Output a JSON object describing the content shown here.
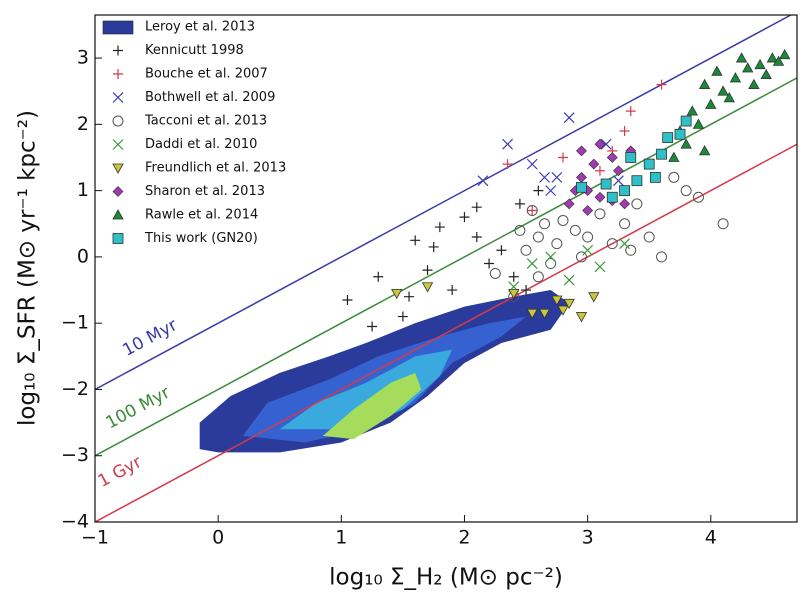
{
  "chart_data": {
    "type": "scatter",
    "xlabel": "log₁₀ Σ_H₂ (M⊙ pc⁻²)",
    "ylabel": "log₁₀ Σ_SFR (M⊙ yr⁻¹ kpc⁻²)",
    "xlim": [
      -1,
      4.7
    ],
    "ylim": [
      -4,
      3.65
    ],
    "xticks": [
      {
        "value": -1,
        "label": "−1"
      },
      0,
      1,
      2,
      3,
      4
    ],
    "yticks": [
      {
        "value": -4,
        "label": "−4"
      },
      {
        "value": -3,
        "label": "−3"
      },
      {
        "value": -2,
        "label": "−2"
      },
      {
        "value": -1,
        "label": "−1"
      },
      0,
      1,
      2,
      3
    ],
    "legend": "upper left",
    "contour": {
      "name": "Leroy et al. 2013",
      "color": "#2b3b9c",
      "levels": [
        {
          "color": "#2b3b9c",
          "x": [
            -0.15,
            -0.15,
            0.1,
            0.5,
            0.9,
            1.2,
            1.6,
            2.0,
            2.4,
            2.7,
            2.85,
            2.7,
            2.3,
            2.0,
            1.7,
            1.4,
            1.0,
            0.5,
            0.0
          ],
          "y": [
            -2.9,
            -2.5,
            -2.1,
            -1.75,
            -1.5,
            -1.3,
            -1.0,
            -0.75,
            -0.6,
            -0.5,
            -0.7,
            -1.1,
            -1.3,
            -1.6,
            -2.1,
            -2.5,
            -2.8,
            -2.95,
            -2.95
          ]
        },
        {
          "color": "#3562d0",
          "x": [
            0.2,
            0.4,
            0.9,
            1.3,
            1.8,
            2.2,
            2.5,
            2.3,
            1.9,
            1.6,
            1.2,
            0.7
          ],
          "y": [
            -2.7,
            -2.2,
            -1.85,
            -1.5,
            -1.2,
            -1.0,
            -0.9,
            -1.2,
            -1.6,
            -2.2,
            -2.6,
            -2.8
          ]
        },
        {
          "color": "#3aa9dd",
          "x": [
            0.5,
            0.8,
            1.2,
            1.6,
            1.9,
            1.8,
            1.5,
            1.1
          ],
          "y": [
            -2.6,
            -2.2,
            -1.9,
            -1.5,
            -1.4,
            -1.8,
            -2.3,
            -2.6
          ]
        },
        {
          "color": "#a6dc5c",
          "x": [
            0.85,
            1.1,
            1.4,
            1.6,
            1.65,
            1.4,
            1.1
          ],
          "y": [
            -2.7,
            -2.3,
            -1.9,
            -1.75,
            -2.0,
            -2.4,
            -2.75
          ]
        }
      ]
    },
    "reference_lines": [
      {
        "label": "10 Myr",
        "color": "#3a3aa8",
        "x": [
          -1,
          4.65
        ],
        "y": [
          -2,
          3.65
        ]
      },
      {
        "label": "100 Myr",
        "color": "#3a8a3a",
        "x": [
          -1,
          4.7
        ],
        "y": [
          -3,
          2.7
        ]
      },
      {
        "label": "1 Gyr",
        "color": "#d43a4a",
        "x": [
          -1,
          4.7
        ],
        "y": [
          -4,
          1.7
        ]
      }
    ],
    "series": [
      {
        "name": "Kennicutt 1998",
        "marker": "plus",
        "color": "#222222",
        "x": [
          1.05,
          1.3,
          1.5,
          1.55,
          1.7,
          1.75,
          1.8,
          1.9,
          2.0,
          2.1,
          2.1,
          2.2,
          2.3,
          2.4,
          2.45,
          2.6,
          2.5,
          1.6,
          1.25
        ],
        "y": [
          -0.65,
          -0.3,
          -0.9,
          -0.6,
          -0.2,
          0.15,
          0.45,
          -0.5,
          0.6,
          0.3,
          0.75,
          -0.1,
          0.1,
          -0.3,
          0.8,
          1.0,
          -0.5,
          0.25,
          -1.05
        ]
      },
      {
        "name": "Bouche et al. 2007",
        "marker": "plus",
        "color": "#d43a4a",
        "x": [
          2.35,
          2.8,
          3.3,
          3.35,
          3.6,
          3.2,
          2.55,
          3.1
        ],
        "y": [
          1.4,
          1.5,
          1.9,
          2.2,
          2.6,
          1.6,
          0.7,
          1.3
        ]
      },
      {
        "name": "Bothwell et al. 2009",
        "marker": "cross",
        "color": "#3a3ab8",
        "x": [
          2.15,
          2.35,
          2.55,
          2.7,
          2.85,
          2.75,
          3.15,
          3.25,
          2.65
        ],
        "y": [
          1.15,
          1.7,
          1.4,
          1.0,
          2.1,
          1.2,
          1.7,
          1.15,
          1.2
        ]
      },
      {
        "name": "Tacconi et al. 2013",
        "marker": "circle",
        "color": "#555555",
        "x": [
          2.25,
          2.4,
          2.5,
          2.6,
          2.65,
          2.7,
          2.75,
          2.8,
          2.9,
          3.0,
          3.1,
          3.2,
          3.3,
          3.4,
          3.5,
          3.6,
          3.7,
          3.9,
          3.8,
          4.1,
          2.55,
          2.6,
          2.45,
          2.95,
          3.35
        ],
        "y": [
          -0.25,
          -0.6,
          0.1,
          0.3,
          0.5,
          -0.1,
          0.2,
          0.55,
          0.4,
          0.3,
          0.65,
          0.2,
          0.5,
          0.8,
          0.3,
          0.0,
          1.2,
          0.9,
          1.0,
          0.5,
          0.7,
          -0.3,
          0.4,
          0.0,
          0.1
        ]
      },
      {
        "name": "Daddi et al. 2010",
        "marker": "cross",
        "color": "#3a9a3a",
        "x": [
          2.4,
          2.55,
          2.7,
          2.85,
          3.0,
          3.3,
          3.1
        ],
        "y": [
          -0.45,
          -0.1,
          0.0,
          -0.35,
          0.1,
          0.2,
          -0.15
        ]
      },
      {
        "name": "Freundlich et al. 2013",
        "marker": "tri-down",
        "color": "#c8c83a",
        "x": [
          1.45,
          1.7,
          2.4,
          2.75,
          2.8,
          2.85,
          3.05,
          2.65,
          2.95,
          2.55
        ],
        "y": [
          -0.55,
          -0.45,
          -0.55,
          -0.65,
          -0.8,
          -0.7,
          -0.6,
          -0.85,
          -0.9,
          -0.85
        ]
      },
      {
        "name": "Sharon et al. 2013",
        "marker": "diamond",
        "color": "#a03ab0",
        "x": [
          2.85,
          2.9,
          2.95,
          3.0,
          3.05,
          3.1,
          3.15,
          3.2,
          3.25,
          3.3,
          3.35,
          2.95,
          3.1,
          3.0,
          3.2
        ],
        "y": [
          0.8,
          1.0,
          1.2,
          0.7,
          1.4,
          0.9,
          1.1,
          1.5,
          1.3,
          0.8,
          1.6,
          1.6,
          1.7,
          1.0,
          0.85
        ]
      },
      {
        "name": "Rawle et al. 2014",
        "marker": "tri-up",
        "color": "#1a8a3a",
        "x": [
          3.7,
          3.8,
          3.9,
          4.0,
          4.1,
          4.2,
          4.3,
          4.4,
          4.5,
          4.6,
          3.85,
          3.95,
          4.05,
          4.15,
          4.35,
          4.45,
          3.75,
          4.25,
          4.55,
          3.95
        ],
        "y": [
          1.5,
          1.7,
          2.0,
          2.3,
          2.5,
          2.7,
          2.85,
          2.9,
          3.0,
          3.05,
          2.2,
          1.6,
          2.8,
          2.4,
          2.6,
          2.75,
          1.9,
          3.0,
          2.95,
          2.6
        ]
      },
      {
        "name": "This work (GN20)",
        "marker": "square",
        "color": "#2ec0c8",
        "x": [
          2.95,
          3.15,
          3.3,
          3.4,
          3.5,
          3.55,
          3.6,
          3.75,
          3.8,
          3.65,
          3.35,
          3.2
        ],
        "y": [
          1.05,
          1.1,
          1.0,
          1.15,
          1.4,
          1.2,
          1.55,
          1.85,
          2.05,
          1.8,
          1.5,
          0.9
        ]
      }
    ]
  }
}
